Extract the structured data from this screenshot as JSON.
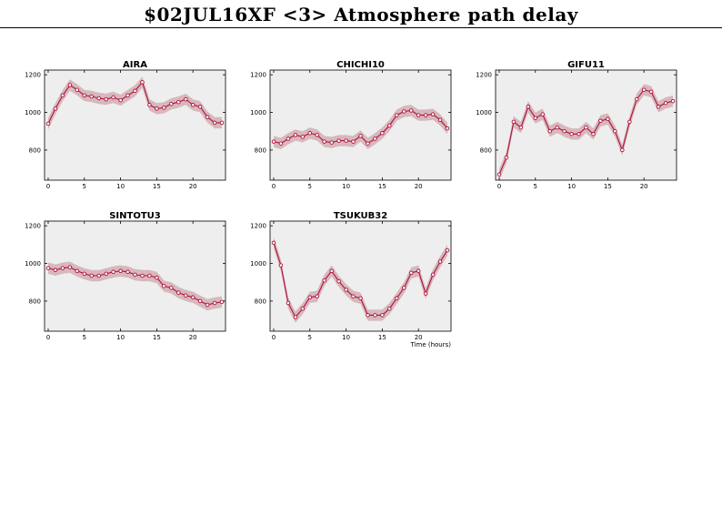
{
  "page": {
    "title": "$02JUL16XF <3>  Atmosphere path delay"
  },
  "colors": {
    "line": "#b0103a",
    "band": "#d6b8bd",
    "panel_bg": "#eeeeee",
    "marker_fill": "#ffffff"
  },
  "chart_data": [
    {
      "type": "line",
      "title": "AIRA",
      "xlabel": "",
      "ylabel": "",
      "xlim": [
        -0.5,
        24.5
      ],
      "ylim": [
        640,
        1225
      ],
      "xticks": [
        0,
        5,
        10,
        15,
        20
      ],
      "yticks": [
        800,
        1000,
        1200
      ],
      "x": [
        0,
        1,
        2,
        3,
        4,
        5,
        6,
        7,
        8,
        9,
        10,
        11,
        12,
        13,
        14,
        15,
        16,
        17,
        18,
        19,
        20,
        21,
        22,
        23,
        24
      ],
      "values": [
        940,
        1020,
        1090,
        1145,
        1120,
        1090,
        1085,
        1075,
        1070,
        1080,
        1065,
        1090,
        1115,
        1160,
        1040,
        1020,
        1025,
        1045,
        1055,
        1070,
        1040,
        1030,
        975,
        945,
        945
      ]
    },
    {
      "type": "line",
      "title": "CHICHI10",
      "xlabel": "",
      "ylabel": "",
      "xlim": [
        -0.5,
        24.5
      ],
      "ylim": [
        640,
        1225
      ],
      "xticks": [
        0,
        5,
        10,
        15,
        20
      ],
      "yticks": [
        800,
        1000,
        1200
      ],
      "x": [
        0,
        1,
        2,
        3,
        4,
        5,
        6,
        7,
        8,
        9,
        10,
        11,
        12,
        13,
        14,
        15,
        16,
        17,
        18,
        19,
        20,
        21,
        22,
        23,
        24
      ],
      "values": [
        845,
        835,
        860,
        880,
        870,
        890,
        880,
        845,
        840,
        850,
        850,
        845,
        875,
        835,
        860,
        890,
        930,
        985,
        1005,
        1010,
        985,
        985,
        990,
        960,
        915
      ]
    },
    {
      "type": "line",
      "title": "GIFU11",
      "xlabel": "",
      "ylabel": "",
      "xlim": [
        -0.5,
        24.5
      ],
      "ylim": [
        640,
        1225
      ],
      "xticks": [
        0,
        5,
        10,
        15,
        20
      ],
      "yticks": [
        800,
        1000,
        1200
      ],
      "x": [
        0,
        1,
        2,
        3,
        4,
        5,
        6,
        7,
        8,
        9,
        10,
        11,
        12,
        13,
        14,
        15,
        16,
        17,
        18,
        19,
        20,
        21,
        22,
        23,
        24
      ],
      "values": [
        670,
        760,
        950,
        920,
        1030,
        970,
        990,
        900,
        920,
        900,
        885,
        885,
        920,
        885,
        955,
        965,
        900,
        800,
        950,
        1070,
        1120,
        1110,
        1030,
        1050,
        1060
      ]
    },
    {
      "type": "line",
      "title": "SINTOTU3",
      "xlabel": "",
      "ylabel": "",
      "xlim": [
        -0.5,
        24.5
      ],
      "ylim": [
        640,
        1225
      ],
      "xticks": [
        0,
        5,
        10,
        15,
        20
      ],
      "yticks": [
        800,
        1000,
        1200
      ],
      "x": [
        0,
        1,
        2,
        3,
        4,
        5,
        6,
        7,
        8,
        9,
        10,
        11,
        12,
        13,
        14,
        15,
        16,
        17,
        18,
        19,
        20,
        21,
        22,
        23,
        24
      ],
      "values": [
        975,
        965,
        975,
        980,
        960,
        945,
        935,
        935,
        945,
        955,
        960,
        955,
        940,
        935,
        935,
        925,
        880,
        870,
        845,
        830,
        820,
        800,
        780,
        790,
        795
      ]
    },
    {
      "type": "line",
      "title": "TSUKUB32",
      "xlabel": "Time (hours)",
      "ylabel": "",
      "xlim": [
        -0.5,
        24.5
      ],
      "ylim": [
        640,
        1225
      ],
      "xticks": [
        0,
        5,
        10,
        15,
        20
      ],
      "yticks": [
        800,
        1000,
        1200
      ],
      "x": [
        0,
        1,
        2,
        3,
        4,
        5,
        6,
        7,
        8,
        9,
        10,
        11,
        12,
        13,
        14,
        15,
        16,
        17,
        18,
        19,
        20,
        21,
        22,
        23,
        24
      ],
      "values": [
        1110,
        990,
        790,
        715,
        760,
        820,
        825,
        910,
        960,
        905,
        860,
        825,
        815,
        725,
        725,
        725,
        760,
        815,
        870,
        950,
        960,
        840,
        940,
        1010,
        1070
      ]
    }
  ]
}
